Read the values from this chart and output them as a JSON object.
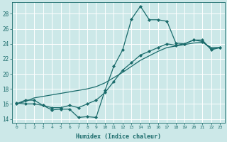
{
  "xlabel": "Humidex (Indice chaleur)",
  "ylabel": "",
  "bg_color": "#cce8e8",
  "line_color": "#1a6b6b",
  "xlim": [
    -0.5,
    23.5
  ],
  "ylim": [
    13.5,
    29.5
  ],
  "xticks": [
    0,
    1,
    2,
    3,
    4,
    5,
    6,
    7,
    8,
    9,
    10,
    11,
    12,
    13,
    14,
    15,
    16,
    17,
    18,
    19,
    20,
    21,
    22,
    23
  ],
  "yticks": [
    14,
    16,
    18,
    20,
    22,
    24,
    26,
    28
  ],
  "curve1_x": [
    0,
    1,
    2,
    3,
    4,
    5,
    6,
    7,
    8,
    9,
    10,
    11,
    12,
    13,
    14,
    15,
    16,
    17,
    18,
    19,
    20,
    21,
    22,
    23
  ],
  "curve1_y": [
    16.0,
    16.5,
    16.5,
    15.8,
    15.2,
    15.3,
    15.3,
    14.2,
    14.3,
    14.2,
    17.8,
    21.0,
    23.2,
    27.3,
    29.0,
    27.2,
    27.2,
    27.0,
    24.1,
    24.0,
    24.5,
    24.5,
    23.2,
    23.5
  ],
  "curve2_x": [
    0,
    1,
    2,
    3,
    4,
    5,
    6,
    7,
    8,
    9,
    10,
    11,
    12,
    13,
    14,
    15,
    16,
    17,
    18,
    19,
    20,
    21,
    22,
    23
  ],
  "curve2_y": [
    16.0,
    16.3,
    16.8,
    17.0,
    17.2,
    17.4,
    17.6,
    17.8,
    18.0,
    18.3,
    18.8,
    19.5,
    20.2,
    21.0,
    21.8,
    22.4,
    23.0,
    23.5,
    23.7,
    23.9,
    24.1,
    24.2,
    23.5,
    23.5
  ],
  "curve3_x": [
    0,
    1,
    2,
    3,
    4,
    5,
    6,
    7,
    8,
    9,
    10,
    11,
    12,
    13,
    14,
    15,
    16,
    17,
    18,
    19,
    20,
    21,
    22,
    23
  ],
  "curve3_y": [
    16.1,
    16.0,
    16.0,
    15.8,
    15.5,
    15.5,
    15.8,
    15.5,
    16.0,
    16.5,
    17.5,
    19.0,
    20.5,
    21.5,
    22.5,
    23.0,
    23.5,
    24.0,
    23.8,
    24.0,
    24.5,
    24.3,
    23.3,
    23.5
  ],
  "marker": "D",
  "markersize": 2.0,
  "linewidth": 0.9
}
